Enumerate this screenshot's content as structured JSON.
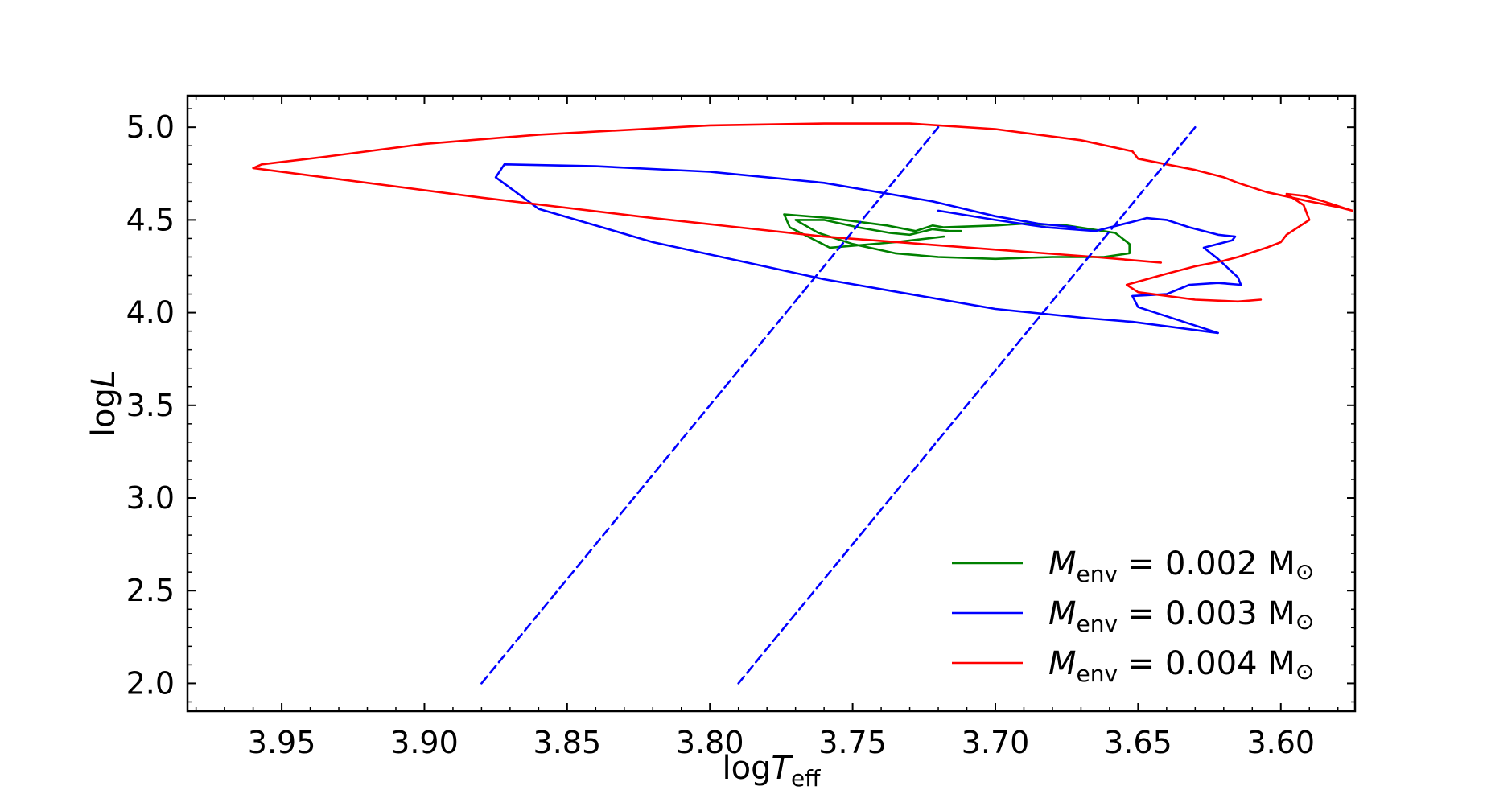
{
  "chart_data": {
    "type": "line",
    "title": "",
    "xlabel": {
      "base": "log",
      "var": "T",
      "sub": "eff"
    },
    "ylabel": {
      "base": "log",
      "var": "L"
    },
    "xlim": [
      3.983,
      3.574
    ],
    "ylim": [
      1.85,
      5.17
    ],
    "x_inverted": true,
    "x_ticks": [
      3.95,
      3.9,
      3.85,
      3.8,
      3.75,
      3.7,
      3.65,
      3.6
    ],
    "x_tick_labels": [
      "3.95",
      "3.90",
      "3.85",
      "3.80",
      "3.75",
      "3.70",
      "3.65",
      "3.60"
    ],
    "y_ticks": [
      2.0,
      2.5,
      3.0,
      3.5,
      4.0,
      4.5,
      5.0
    ],
    "y_tick_labels": [
      "2.0",
      "2.5",
      "3.0",
      "3.5",
      "4.0",
      "4.5",
      "5.0"
    ],
    "grid": false,
    "legend_position": "lower-right",
    "series": [
      {
        "legend_var": "M",
        "legend_sub": "env",
        "legend_rest": " = 0.002 M",
        "legend_unit": "⊙",
        "color": "#008000",
        "dash": "solid",
        "x": [
          3.718,
          3.735,
          3.758,
          3.772,
          3.774,
          3.758,
          3.738,
          3.728,
          3.722,
          3.718,
          3.7,
          3.69,
          3.675,
          3.658,
          3.653,
          3.653,
          3.662,
          3.68,
          3.7,
          3.72,
          3.735,
          3.75,
          3.762,
          3.77,
          3.76,
          3.748,
          3.737,
          3.73,
          3.722,
          3.716,
          3.712
        ],
        "y": [
          4.41,
          4.38,
          4.35,
          4.46,
          4.53,
          4.51,
          4.47,
          4.44,
          4.47,
          4.46,
          4.47,
          4.48,
          4.47,
          4.43,
          4.37,
          4.32,
          4.3,
          4.3,
          4.29,
          4.3,
          4.32,
          4.37,
          4.43,
          4.5,
          4.5,
          4.46,
          4.43,
          4.42,
          4.45,
          4.44,
          4.44
        ]
      },
      {
        "legend_var": "M",
        "legend_sub": "env",
        "legend_rest": " = 0.003 M",
        "legend_unit": "⊙",
        "color": "#0000ff",
        "dash": "solid",
        "x": [
          3.72,
          3.7,
          3.682,
          3.665,
          3.652,
          3.647,
          3.64,
          3.632,
          3.622,
          3.616,
          3.617,
          3.627,
          3.622,
          3.615,
          3.614,
          3.622,
          3.632,
          3.64,
          3.652,
          3.65,
          3.64,
          3.622,
          3.652,
          3.668,
          3.7,
          3.76,
          3.82,
          3.86,
          3.875,
          3.872,
          3.84,
          3.8,
          3.76,
          3.722,
          3.7,
          3.685,
          3.672
        ],
        "y": [
          4.55,
          4.5,
          4.46,
          4.44,
          4.49,
          4.51,
          4.5,
          4.46,
          4.42,
          4.41,
          4.39,
          4.35,
          4.29,
          4.19,
          4.15,
          4.16,
          4.15,
          4.1,
          4.09,
          4.03,
          3.98,
          3.89,
          3.95,
          3.97,
          4.02,
          4.18,
          4.38,
          4.56,
          4.73,
          4.8,
          4.79,
          4.76,
          4.7,
          4.6,
          4.52,
          4.48,
          4.46
        ]
      },
      {
        "legend_var": "M",
        "legend_sub": "env",
        "legend_rest": " = 0.004 M",
        "legend_unit": "⊙",
        "color": "#ff0000",
        "dash": "solid",
        "x": [
          3.642,
          3.665,
          3.7,
          3.76,
          3.82,
          3.88,
          3.935,
          3.96,
          3.957,
          3.935,
          3.9,
          3.86,
          3.8,
          3.76,
          3.73,
          3.7,
          3.67,
          3.652,
          3.65,
          3.64,
          3.63,
          3.62,
          3.615,
          3.605,
          3.59,
          3.58,
          3.575,
          3.577,
          3.585,
          3.592,
          3.598,
          3.592,
          3.59,
          3.598,
          3.6,
          3.605,
          3.615,
          3.62,
          3.63,
          3.64,
          3.654,
          3.65,
          3.63,
          3.615,
          3.607
        ],
        "y": [
          4.27,
          4.3,
          4.34,
          4.41,
          4.51,
          4.62,
          4.73,
          4.78,
          4.8,
          4.84,
          4.91,
          4.96,
          5.01,
          5.02,
          5.02,
          4.99,
          4.93,
          4.87,
          4.83,
          4.8,
          4.77,
          4.73,
          4.7,
          4.65,
          4.6,
          4.57,
          4.55,
          4.56,
          4.6,
          4.63,
          4.64,
          4.58,
          4.5,
          4.42,
          4.38,
          4.35,
          4.3,
          4.28,
          4.25,
          4.21,
          4.15,
          4.11,
          4.07,
          4.06,
          4.07
        ]
      },
      {
        "color": "#0000ff",
        "dash": "dashed",
        "x": [
          3.88,
          3.72
        ],
        "y": [
          2.0,
          5.0
        ]
      },
      {
        "color": "#0000ff",
        "dash": "dashed",
        "x": [
          3.79,
          3.63
        ],
        "y": [
          2.0,
          5.0
        ]
      }
    ]
  }
}
